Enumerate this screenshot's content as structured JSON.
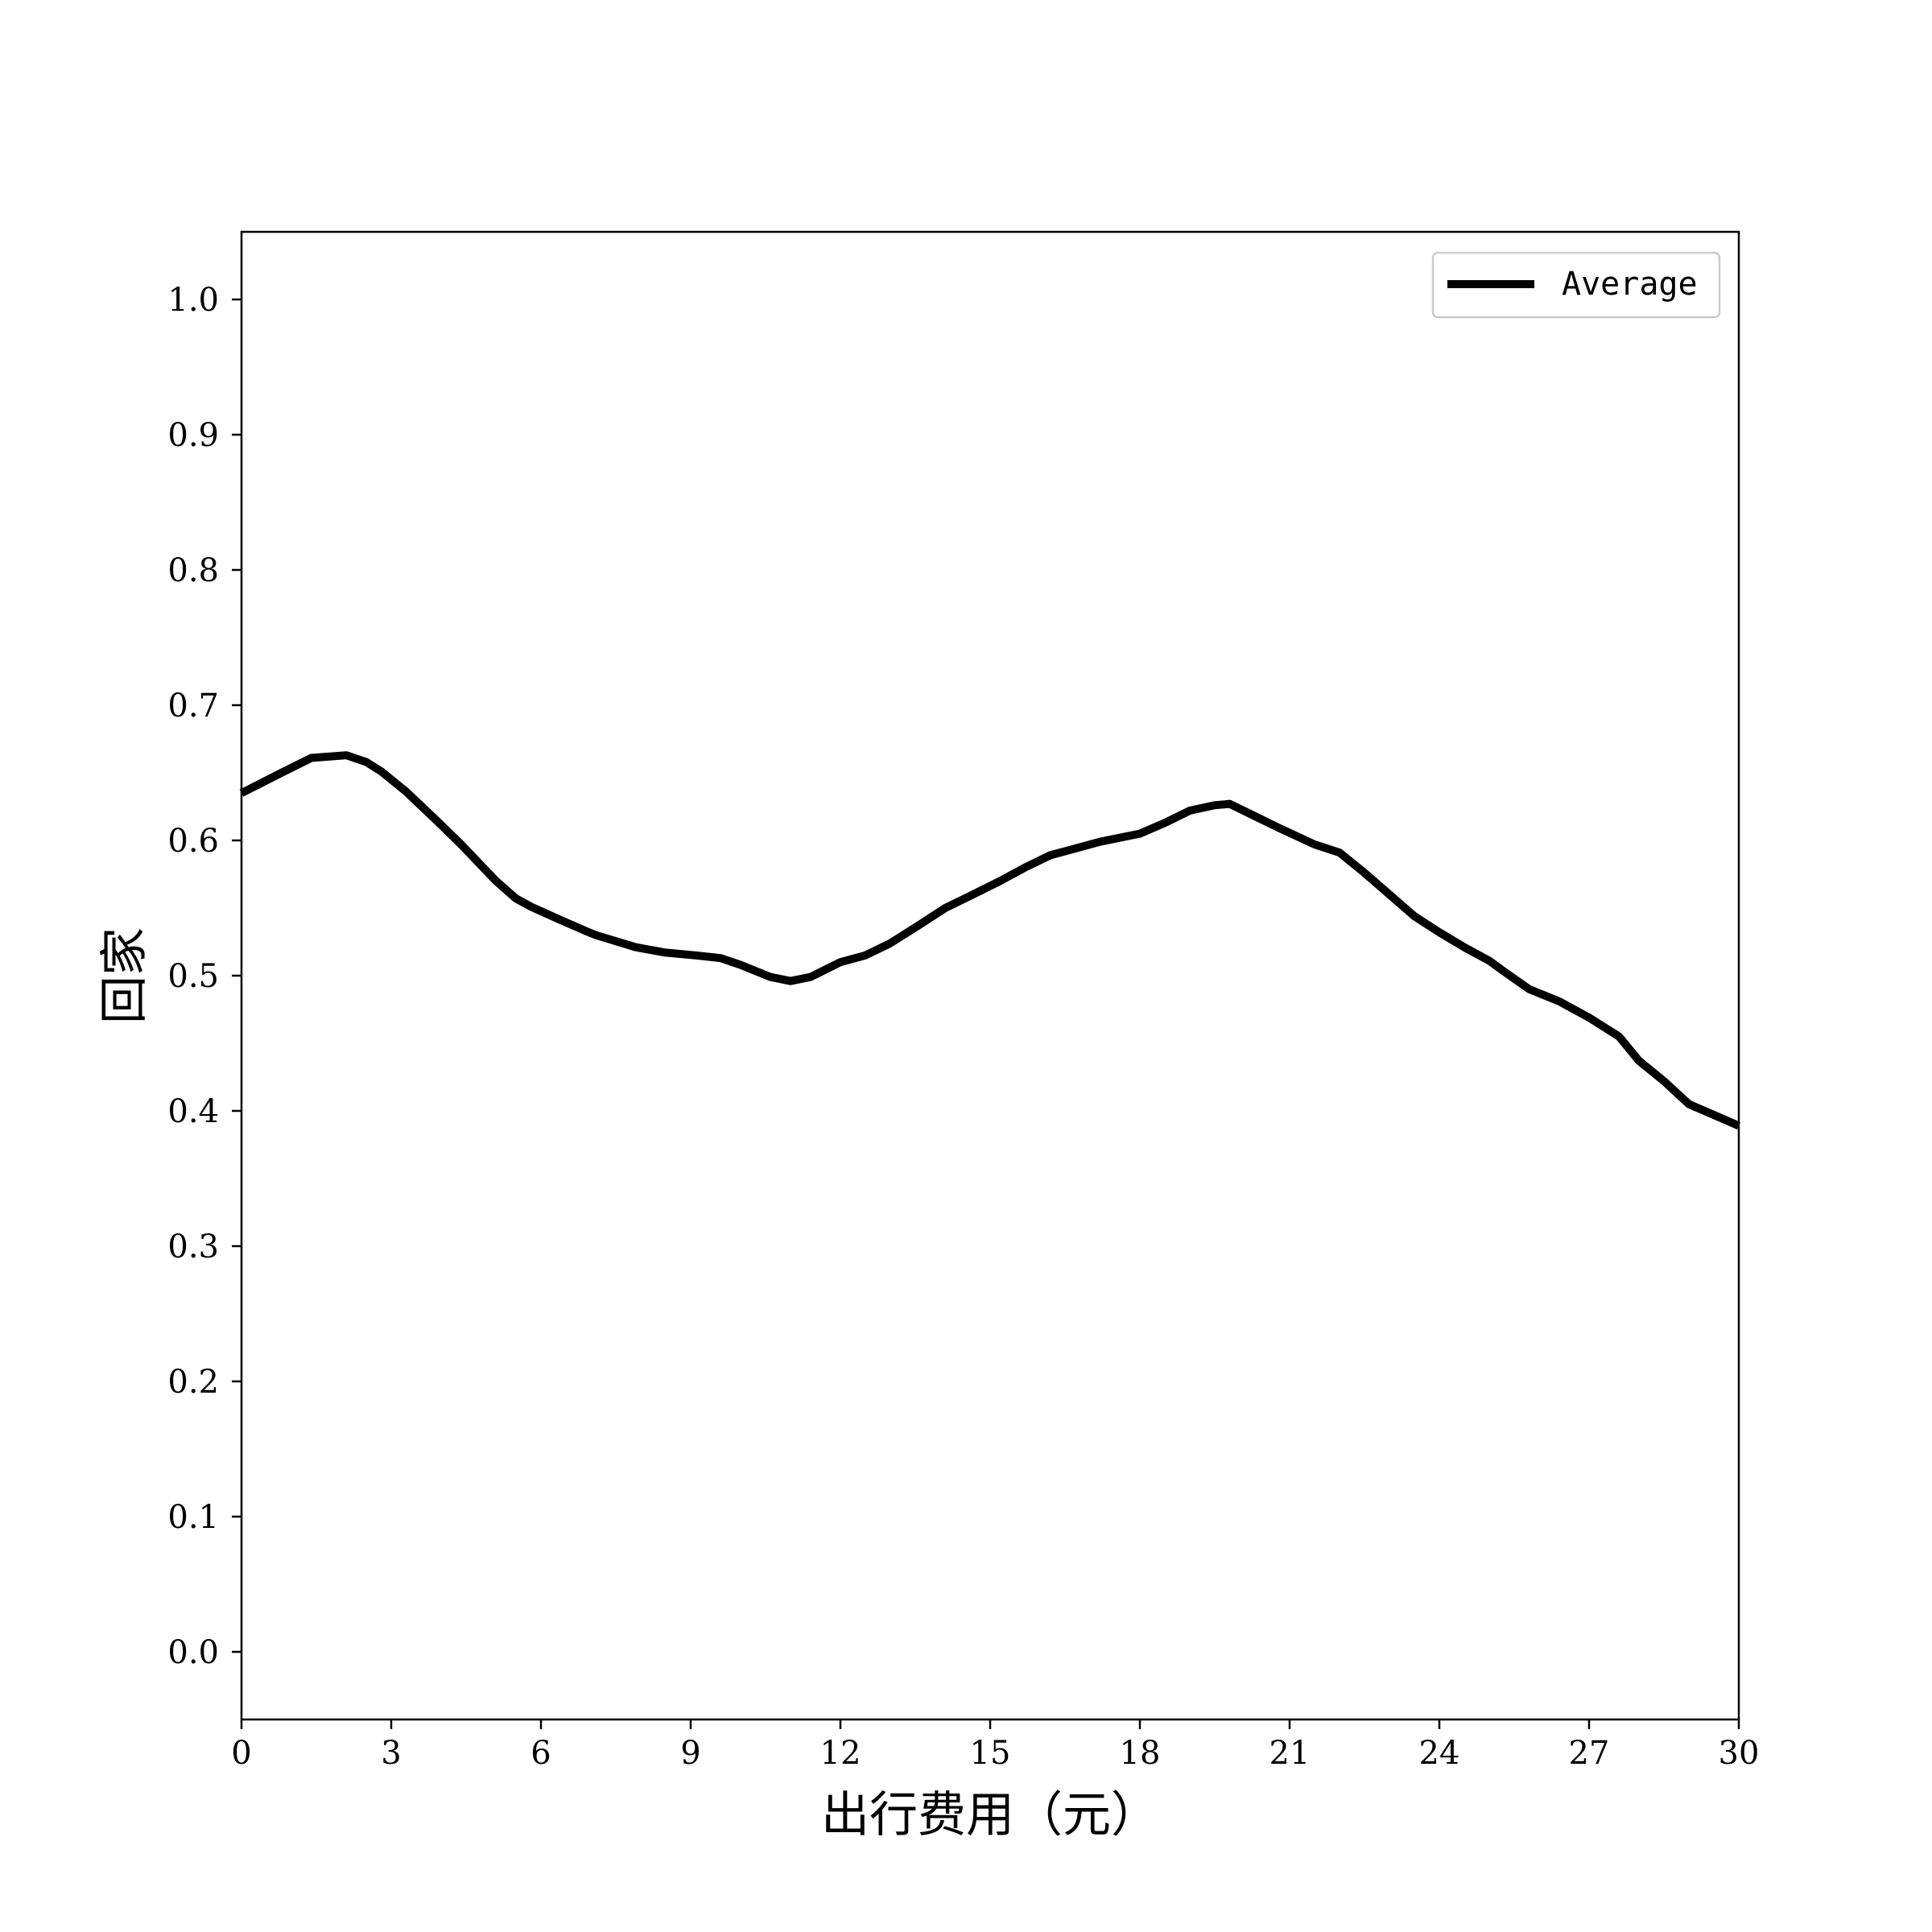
{
  "chart_data": {
    "type": "line",
    "title": "",
    "xlabel": "出行费用（元）",
    "ylabel": "回家",
    "xlim": [
      0,
      30
    ],
    "ylim": [
      -0.05,
      1.05
    ],
    "x_ticks": [
      "0",
      "3",
      "6",
      "9",
      "12",
      "15",
      "18",
      "21",
      "24",
      "27",
      "30"
    ],
    "y_ticks": [
      "0.0",
      "0.1",
      "0.2",
      "0.3",
      "0.4",
      "0.5",
      "0.6",
      "0.7",
      "0.8",
      "0.9",
      "1.0"
    ],
    "grid": false,
    "legend_position": "top-right",
    "series": [
      {
        "name": "Average",
        "color": "#000000",
        "x": [
          0,
          0.8,
          1.4,
          2.1,
          2.5,
          2.8,
          3.3,
          3.9,
          4.4,
          5.1,
          5.5,
          5.8,
          6.4,
          6.9,
          7.1,
          7.9,
          8.5,
          9.1,
          9.6,
          10.0,
          10.6,
          11.0,
          11.4,
          12.0,
          12.5,
          13.0,
          13.6,
          14.1,
          14.6,
          15.2,
          15.7,
          16.2,
          16.6,
          17.2,
          17.6,
          18.0,
          18.5,
          19.0,
          19.5,
          19.8,
          20.3,
          20.8,
          21.5,
          22.0,
          22.5,
          23.0,
          23.5,
          24.0,
          24.5,
          25.0,
          25.3,
          25.8,
          26.4,
          27.0,
          27.6,
          28.0,
          28.5,
          29.0,
          29.5,
          30.0
        ],
        "y": [
          0.635,
          0.65,
          0.661,
          0.663,
          0.658,
          0.651,
          0.636,
          0.615,
          0.597,
          0.57,
          0.557,
          0.551,
          0.541,
          0.533,
          0.53,
          0.521,
          0.517,
          0.515,
          0.513,
          0.508,
          0.499,
          0.496,
          0.499,
          0.51,
          0.515,
          0.524,
          0.538,
          0.55,
          0.559,
          0.57,
          0.58,
          0.589,
          0.593,
          0.599,
          0.602,
          0.605,
          0.613,
          0.622,
          0.626,
          0.627,
          0.618,
          0.609,
          0.597,
          0.591,
          0.576,
          0.56,
          0.544,
          0.532,
          0.521,
          0.511,
          0.503,
          0.49,
          0.481,
          0.469,
          0.455,
          0.437,
          0.422,
          0.405,
          0.397,
          0.389
        ]
      }
    ]
  }
}
